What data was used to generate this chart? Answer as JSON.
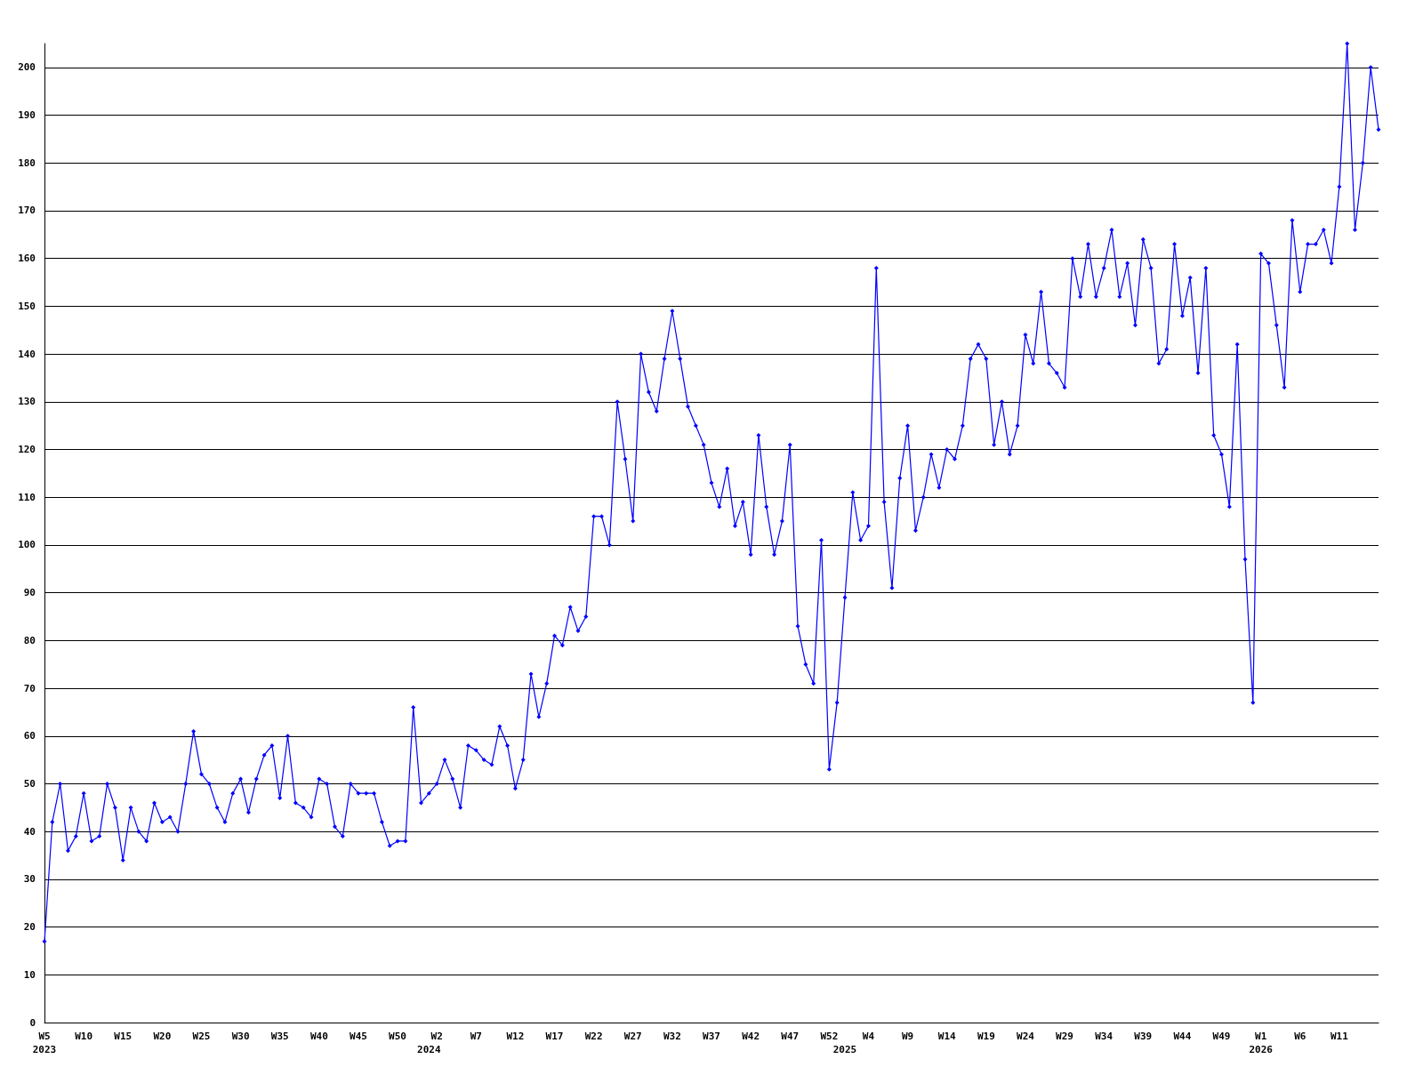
{
  "chart_data": {
    "type": "line",
    "categories": [
      "W5\n2023",
      null,
      null,
      null,
      null,
      "W10",
      null,
      null,
      null,
      null,
      "W15",
      null,
      null,
      null,
      null,
      "W20",
      null,
      null,
      null,
      null,
      "W25",
      null,
      null,
      null,
      null,
      "W30",
      null,
      null,
      null,
      null,
      "W35",
      null,
      null,
      null,
      null,
      "W40",
      null,
      null,
      null,
      null,
      "W45",
      null,
      null,
      null,
      null,
      "W50",
      null,
      null,
      null,
      "\n2024",
      "W2",
      null,
      null,
      null,
      null,
      "W7",
      null,
      null,
      null,
      null,
      "W12",
      null,
      null,
      null,
      null,
      "W17",
      null,
      null,
      null,
      null,
      "W22",
      null,
      null,
      null,
      null,
      "W27",
      null,
      null,
      null,
      null,
      "W32",
      null,
      null,
      null,
      null,
      "W37",
      null,
      null,
      null,
      null,
      "W42",
      null,
      null,
      null,
      null,
      "W47",
      null,
      null,
      null,
      null,
      "W52",
      null,
      "\n2025",
      null,
      null,
      "W4",
      null,
      null,
      null,
      null,
      "W9",
      null,
      null,
      null,
      null,
      "W14",
      null,
      null,
      null,
      null,
      "W19",
      null,
      null,
      null,
      null,
      "W24",
      null,
      null,
      null,
      null,
      "W29",
      null,
      null,
      null,
      null,
      "W34",
      null,
      null,
      null,
      null,
      "W39",
      null,
      null,
      null,
      null,
      "W44",
      null,
      null,
      null,
      null,
      "W49",
      null,
      null,
      null,
      null,
      "W1\n2026",
      null,
      null,
      null,
      null,
      "W6",
      null,
      null,
      null,
      null,
      "W11",
      null,
      null,
      null,
      null,
      null
    ],
    "series": [
      {
        "color": "#0000ff",
        "values": [
          17,
          42,
          50,
          36,
          39,
          48,
          38,
          39,
          50,
          45,
          34,
          45,
          40,
          38,
          46,
          42,
          43,
          40,
          50,
          61,
          52,
          50,
          45,
          42,
          48,
          51,
          44,
          51,
          56,
          58,
          47,
          60,
          46,
          45,
          43,
          51,
          50,
          41,
          39,
          50,
          48,
          48,
          48,
          42,
          37,
          38,
          38,
          66,
          46,
          48,
          50,
          55,
          51,
          45,
          58,
          57,
          55,
          54,
          62,
          58,
          49,
          55,
          73,
          64,
          71,
          81,
          79,
          87,
          82,
          85,
          106,
          106,
          100,
          130,
          118,
          105,
          140,
          132,
          128,
          139,
          149,
          139,
          129,
          125,
          121,
          113,
          108,
          116,
          104,
          109,
          98,
          123,
          108,
          98,
          105,
          121,
          83,
          75,
          71,
          101,
          53,
          67,
          89,
          111,
          101,
          104,
          158,
          109,
          91,
          114,
          125,
          103,
          110,
          119,
          112,
          120,
          118,
          125,
          139,
          142,
          139,
          121,
          130,
          119,
          125,
          144,
          138,
          153,
          138,
          136,
          133,
          160,
          152,
          163,
          152,
          158,
          166,
          152,
          159,
          146,
          164,
          158,
          138,
          141,
          163,
          148,
          156,
          136,
          158,
          123,
          119,
          108,
          142,
          97,
          67,
          161,
          159,
          146,
          133,
          168,
          153,
          163,
          163,
          166,
          159,
          175,
          205,
          166,
          180,
          200,
          187
        ]
      }
    ],
    "ylim": [
      0,
      205
    ],
    "yticks": [
      0,
      10,
      20,
      30,
      40,
      50,
      60,
      70,
      80,
      90,
      100,
      110,
      120,
      130,
      140,
      150,
      160,
      170,
      180,
      190,
      200
    ],
    "grid": "y",
    "marker": "diamond",
    "line_style": "solid"
  }
}
